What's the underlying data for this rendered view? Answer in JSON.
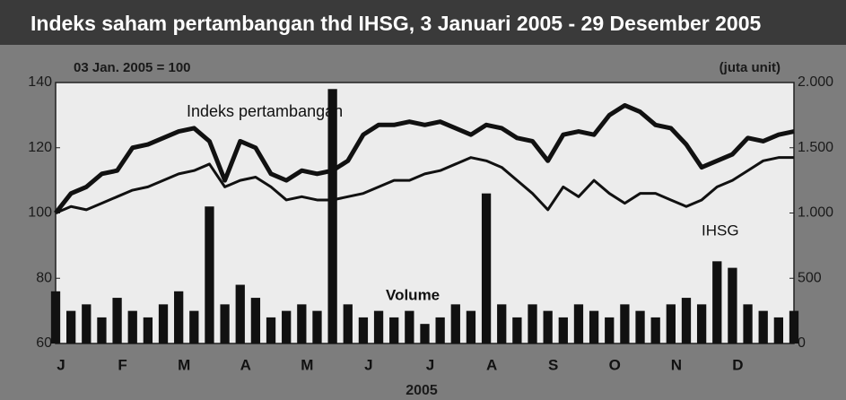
{
  "chart_data": {
    "type": "line",
    "title": "Indeks saham pertambangan thd  IHSG, 3 Januari 2005 - 29 Desember 2005",
    "subtitle": "03 Jan. 2005 = 100",
    "y2_label": "(juta unit)",
    "x_label": "2005",
    "annotations": [
      "Indeks pertambangan",
      "IHSG",
      "Volume"
    ],
    "xlim": [
      0,
      12
    ],
    "xticks": [
      {
        "value": 0,
        "label": "J"
      },
      {
        "value": 1,
        "label": "F"
      },
      {
        "value": 2,
        "label": "M"
      },
      {
        "value": 3,
        "label": "A"
      },
      {
        "value": 4,
        "label": "M"
      },
      {
        "value": 5,
        "label": "J"
      },
      {
        "value": 6,
        "label": "J"
      },
      {
        "value": 7,
        "label": "A"
      },
      {
        "value": 8,
        "label": "S"
      },
      {
        "value": 9,
        "label": "O"
      },
      {
        "value": 10,
        "label": "N"
      },
      {
        "value": 11,
        "label": "D"
      }
    ],
    "x": [
      0,
      0.25,
      0.5,
      0.75,
      1,
      1.25,
      1.5,
      1.75,
      2,
      2.25,
      2.5,
      2.75,
      3,
      3.25,
      3.5,
      3.75,
      4,
      4.25,
      4.5,
      4.75,
      5,
      5.25,
      5.5,
      5.75,
      6,
      6.25,
      6.5,
      6.75,
      7,
      7.25,
      7.5,
      7.75,
      8,
      8.25,
      8.5,
      8.75,
      9,
      9.25,
      9.5,
      9.75,
      10,
      10.25,
      10.5,
      10.75,
      11,
      11.25,
      11.5,
      11.75,
      12
    ],
    "ylim": [
      60,
      140
    ],
    "yticks": [
      60,
      80,
      100,
      120,
      140
    ],
    "y2lim": [
      0,
      2000
    ],
    "y2ticks": [
      0,
      500,
      {
        "value": 1000,
        "label": "1.000"
      },
      {
        "value": 1500,
        "label": "1.500"
      },
      {
        "value": 2000,
        "label": "2.000"
      }
    ],
    "series": [
      {
        "name": "Indeks pertambangan",
        "color": "#111111",
        "width": 5,
        "values": [
          100,
          106,
          108,
          112,
          113,
          120,
          121,
          123,
          125,
          126,
          122,
          110,
          122,
          120,
          112,
          110,
          113,
          112,
          113,
          116,
          124,
          127,
          127,
          128,
          127,
          128,
          126,
          124,
          127,
          126,
          123,
          122,
          116,
          124,
          125,
          124,
          130,
          133,
          131,
          127,
          126,
          121,
          114,
          116,
          118,
          123,
          122,
          124,
          125
        ]
      },
      {
        "name": "IHSG",
        "color": "#111111",
        "width": 3,
        "values": [
          100,
          102,
          101,
          103,
          105,
          107,
          108,
          110,
          112,
          113,
          115,
          108,
          110,
          111,
          108,
          104,
          105,
          104,
          104,
          105,
          106,
          108,
          110,
          110,
          112,
          113,
          115,
          117,
          116,
          114,
          110,
          106,
          101,
          108,
          105,
          110,
          106,
          103,
          106,
          106,
          104,
          102,
          104,
          108,
          110,
          113,
          116,
          117,
          117
        ]
      },
      {
        "name": "Volume",
        "type": "bar",
        "axis": "y2",
        "color": "#111111",
        "values": [
          400,
          250,
          300,
          200,
          350,
          250,
          200,
          300,
          400,
          250,
          1050,
          300,
          450,
          350,
          200,
          250,
          300,
          250,
          1950,
          300,
          200,
          250,
          200,
          250,
          150,
          200,
          300,
          250,
          1150,
          300,
          200,
          300,
          250,
          200,
          300,
          250,
          200,
          300,
          250,
          200,
          300,
          350,
          300,
          630,
          580,
          300,
          250,
          200,
          250
        ]
      }
    ]
  }
}
